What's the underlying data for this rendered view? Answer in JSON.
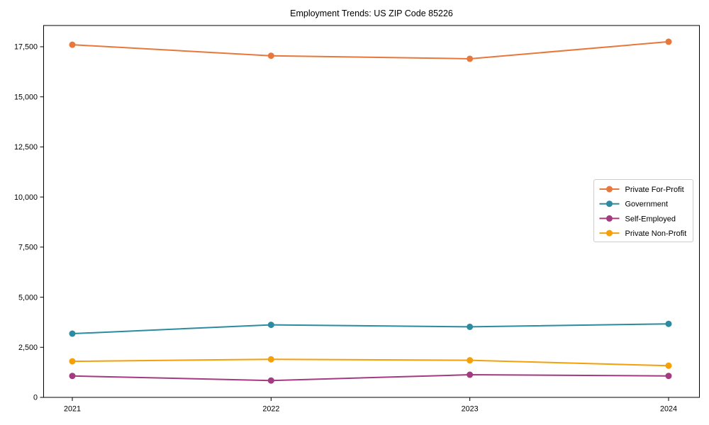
{
  "chart_data": {
    "type": "line",
    "title": "Employment Trends: US ZIP Code 85226",
    "xlabel": "",
    "ylabel": "",
    "x": [
      "2021",
      "2022",
      "2023",
      "2024"
    ],
    "series": [
      {
        "name": "Private For-Profit",
        "color": "#e8773c",
        "values": [
          17600,
          17050,
          16900,
          17750
        ]
      },
      {
        "name": "Government",
        "color": "#2c8ba0",
        "values": [
          3180,
          3620,
          3520,
          3670
        ]
      },
      {
        "name": "Self-Employed",
        "color": "#a33b80",
        "values": [
          1070,
          840,
          1130,
          1070
        ]
      },
      {
        "name": "Private Non-Profit",
        "color": "#f5a009",
        "values": [
          1800,
          1900,
          1850,
          1580
        ]
      }
    ],
    "ylim": [
      0,
      18560
    ],
    "yticks": [
      0,
      2500,
      5000,
      7500,
      10000,
      12500,
      15000,
      17500
    ],
    "grid": false,
    "frame": "box",
    "marker": "circle",
    "legend_position": "right-middle",
    "colors": {
      "axis": "#000000",
      "legend_border": "#cccccc",
      "background": "#ffffff"
    }
  }
}
